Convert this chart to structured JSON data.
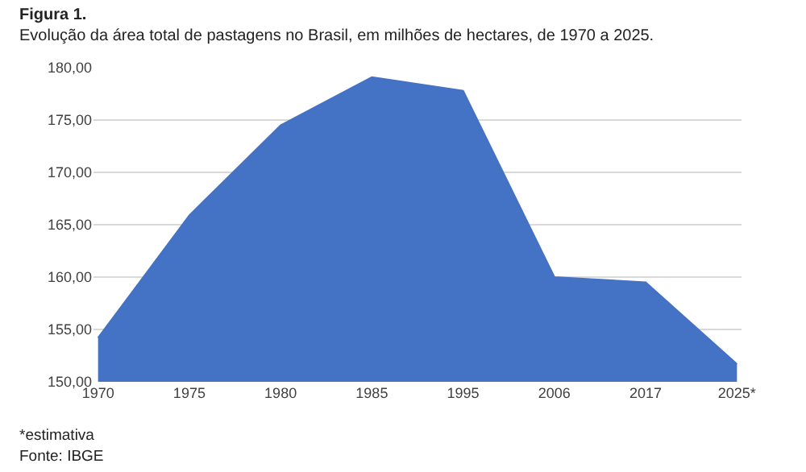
{
  "chart_data": {
    "type": "area",
    "title": "Figura 1.",
    "subtitle": "Evolução da área total de pastagens no Brasil, em milhões de hectares, de 1970 a 2025.",
    "categories": [
      "1970",
      "1975",
      "1980",
      "1985",
      "1995",
      "2006",
      "2017",
      "2025*"
    ],
    "series": [
      {
        "color": "#4472c4",
        "values": [
          154.2,
          165.9,
          174.5,
          179.1,
          177.8,
          160.0,
          159.5,
          151.7
        ]
      }
    ],
    "ylim": [
      150,
      180
    ],
    "yticks": [
      {
        "value": 150,
        "label": "150,00"
      },
      {
        "value": 155,
        "label": "155,00"
      },
      {
        "value": 160,
        "label": "160,00"
      },
      {
        "value": 165,
        "label": "165,00"
      },
      {
        "value": 170,
        "label": "170,00"
      },
      {
        "value": 175,
        "label": "175,00"
      },
      {
        "value": 180,
        "label": "180,00"
      }
    ],
    "grid": "y",
    "annotations": [
      "*estimativa",
      "Fonte: IBGE"
    ]
  }
}
